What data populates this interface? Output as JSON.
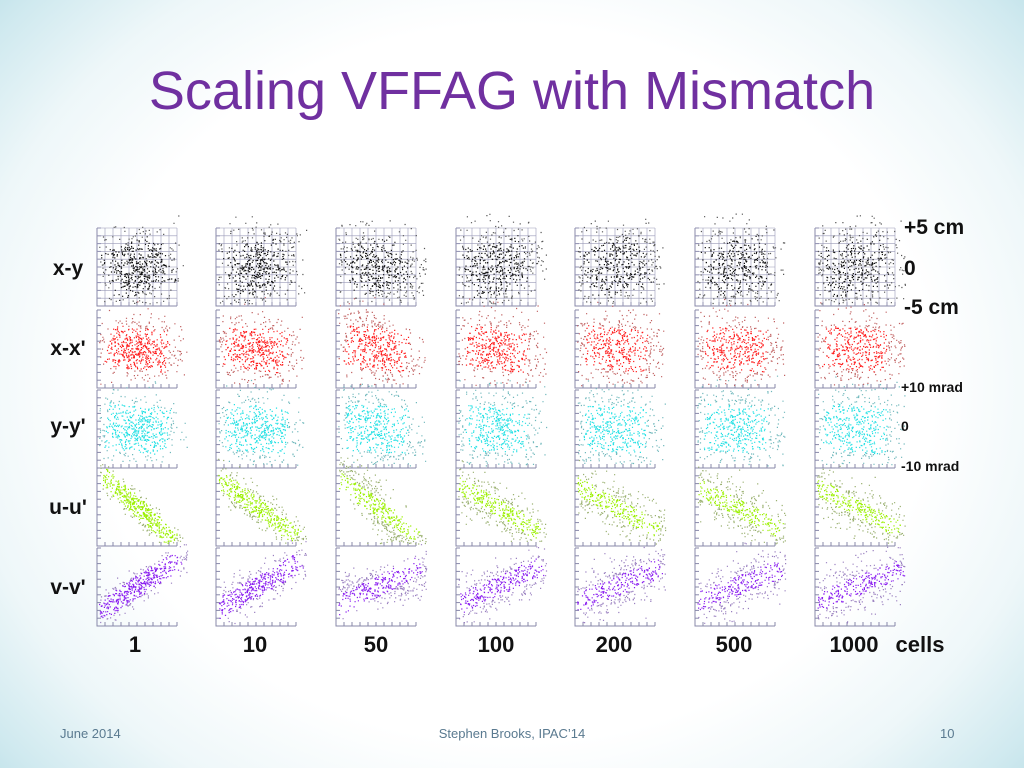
{
  "slide": {
    "title": "Scaling VFFAG with Mismatch",
    "row_labels": [
      "x-y",
      "x-x'",
      "y-y'",
      "u-u'",
      "v-v'"
    ],
    "column_labels": [
      "1",
      "10",
      "50",
      "100",
      "200",
      "500",
      "1000"
    ],
    "column_unit": "cells",
    "position_scale": {
      "top": "+5 cm",
      "middle": "0",
      "bottom": "-5 cm"
    },
    "angle_scale": {
      "top": "+10 mrad",
      "middle": "0",
      "bottom": "-10 mrad"
    },
    "footer": {
      "date": "June 2014",
      "author": "Stephen Brooks, IPAC’14",
      "page": "10"
    }
  },
  "chart_data": {
    "type": "scatter",
    "description_rows": [
      "x-y",
      "x-x'",
      "y-y'",
      "u-u'",
      "v-v'"
    ],
    "cells": [
      1,
      10,
      50,
      100,
      200,
      500,
      1000
    ],
    "colors": {
      "x-y": "#111111",
      "x-x'": "#ff1e1e",
      "y-y'": "#22e0e4",
      "u-u'": "#9bf000",
      "v-v'": "#8a1ef0"
    },
    "halo_colors": {
      "x-y": "#555555",
      "x-x'": "#c06060",
      "y-y'": "#70b8bc",
      "u-u'": "#9ab070",
      "v-v'": "#9a80c0"
    },
    "grid_on_first_row": true
  }
}
